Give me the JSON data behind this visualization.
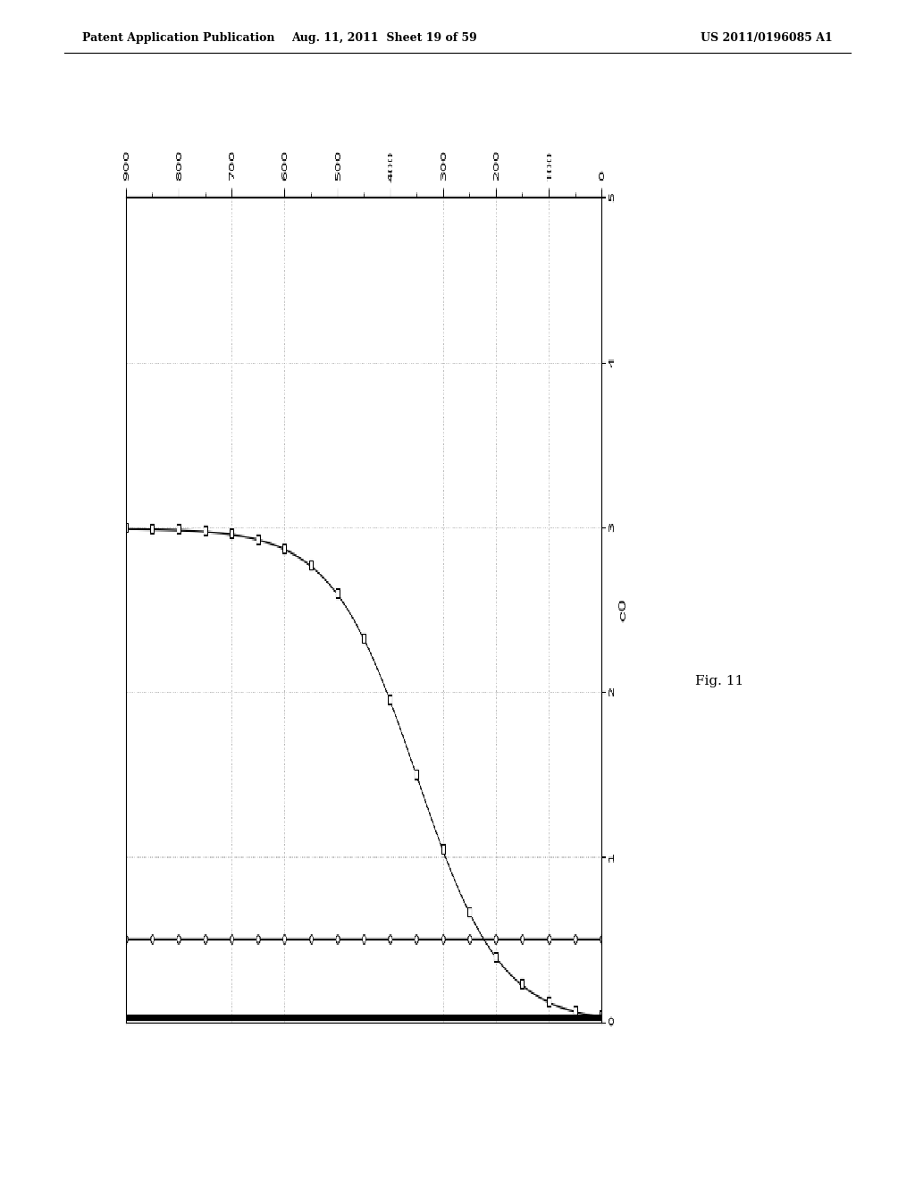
{
  "header_left": "Patent Application Publication",
  "header_mid": "Aug. 11, 2011  Sheet 19 of 59",
  "header_right": "US 2011/0196085 A1",
  "fig_caption": "Fig. 11",
  "xlabel": "c0",
  "xlim": [
    0,
    5
  ],
  "ylim": [
    0,
    900
  ],
  "yticks": [
    0,
    100,
    200,
    300,
    400,
    500,
    600,
    700,
    800,
    900
  ],
  "xticks": [
    0,
    1,
    2,
    3,
    4,
    5
  ],
  "background_color": "#ffffff",
  "grid_color": "#aaaaaa",
  "curve1_tau": 200.0,
  "curve1_scale": 3.0,
  "curve2_x_const": 0.5,
  "curve3_x_const": 0.05,
  "marker_interval": 50
}
